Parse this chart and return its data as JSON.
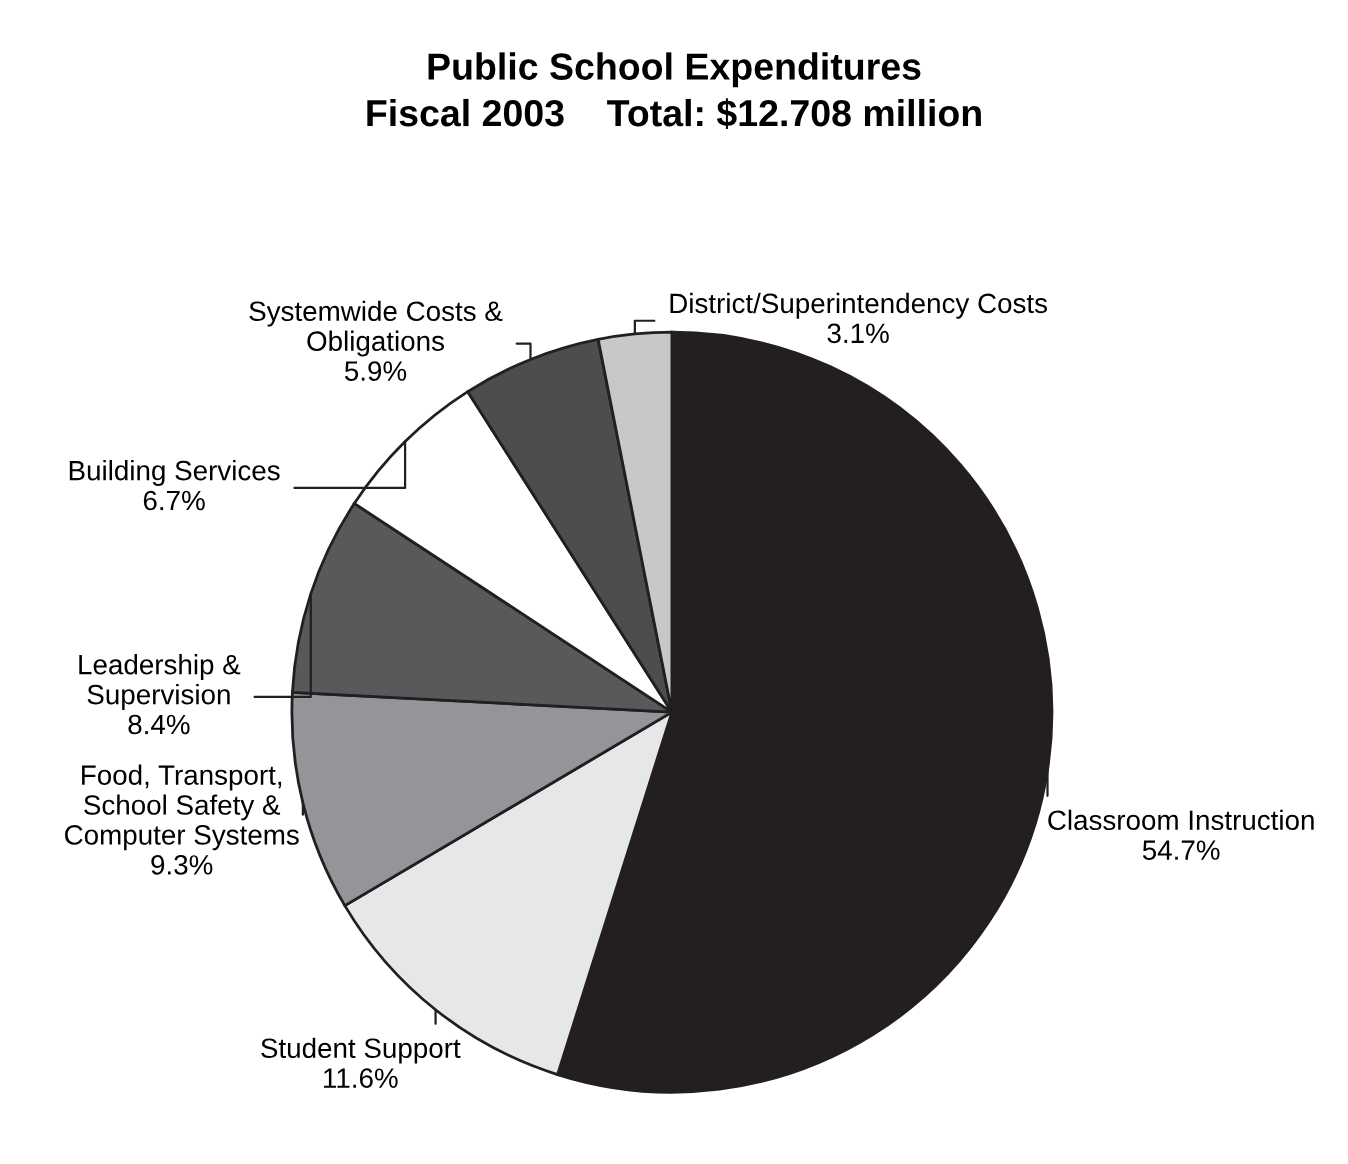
{
  "chart_data": {
    "type": "pie",
    "title": "Public School Expenditures",
    "subtitle": "Fiscal 2003    Total: $12.708 million",
    "categories": [
      "Classroom Instruction",
      "Student Support",
      "Food, Transport,\nSchool Safety &\nComputer Systems",
      "Leadership &\nSupervision",
      "Building Services",
      "Systemwide Costs &\nObligations",
      "District/Superintendency Costs"
    ],
    "values": [
      54.7,
      11.6,
      9.3,
      8.4,
      6.7,
      5.9,
      3.1
    ],
    "value_labels": [
      "54.7%",
      "11.6%",
      "9.3%",
      "8.4%",
      "6.7%",
      "5.9%",
      "3.1%"
    ],
    "colors": [
      "#231f20",
      "#e6e7e8",
      "#939598",
      "#58595b",
      "#ffffff",
      "#4d4d4f",
      "#c7c8ca"
    ]
  }
}
